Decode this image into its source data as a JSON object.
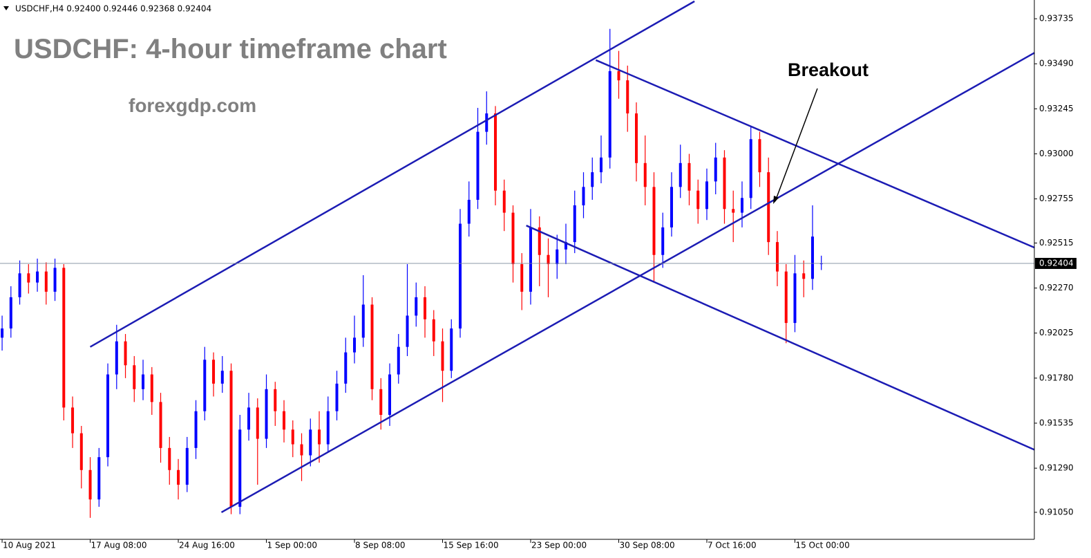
{
  "chart_data": {
    "type": "candlestick",
    "header": "USDCHF,H4  0.92400 0.92446 0.92368 0.92404",
    "title": "USDCHF: 4-hour timeframe chart",
    "subtitle": "forexgdp.com",
    "annotation": "Breakout",
    "up_color": "#0000ff",
    "down_color": "#ff0000",
    "line_color": "#1c1cb4",
    "xlim": [
      -0.24,
      117.18
    ],
    "ylim": [
      0.90903,
      0.93837
    ],
    "xticks": [
      {
        "value": 0,
        "label": "10 Aug 2021"
      },
      {
        "value": 10,
        "label": "17 Aug 08:00"
      },
      {
        "value": 20,
        "label": "24 Aug 16:00"
      },
      {
        "value": 30,
        "label": "1 Sep 00:00"
      },
      {
        "value": 40,
        "label": "8 Sep 08:00"
      },
      {
        "value": 50,
        "label": "15 Sep 16:00"
      },
      {
        "value": 60,
        "label": "23 Sep 00:00"
      },
      {
        "value": 70,
        "label": "30 Sep 08:00"
      },
      {
        "value": 80,
        "label": "7 Oct 16:00"
      },
      {
        "value": 90,
        "label": "15 Oct 00:00"
      }
    ],
    "yticks": [
      {
        "value": 0.93735,
        "label": "0.93735"
      },
      {
        "value": 0.9349,
        "label": "0.93490"
      },
      {
        "value": 0.93245,
        "label": "0.93245"
      },
      {
        "value": 0.93,
        "label": "0.93000"
      },
      {
        "value": 0.92755,
        "label": "0.92755"
      },
      {
        "value": 0.92515,
        "label": "0.92515"
      },
      {
        "value": 0.9227,
        "label": "0.92270"
      },
      {
        "value": 0.92025,
        "label": "0.92025"
      },
      {
        "value": 0.9178,
        "label": "0.91780"
      },
      {
        "value": 0.91535,
        "label": "0.91535"
      },
      {
        "value": 0.9129,
        "label": "0.91290"
      },
      {
        "value": 0.9105,
        "label": "0.91050"
      }
    ],
    "current_price": {
      "value": 0.92404,
      "label": "0.92404"
    },
    "open": [
      0.92,
      0.9205,
      0.9222,
      0.9235,
      0.923,
      0.9236,
      0.9225,
      0.9238,
      0.9162,
      0.9148,
      0.9128,
      0.9112,
      0.9135,
      0.918,
      0.9198,
      0.9185,
      0.9172,
      0.918,
      0.9165,
      0.914,
      0.9128,
      0.912,
      0.914,
      0.916,
      0.9188,
      0.9175,
      0.9182,
      0.9108,
      0.915,
      0.9162,
      0.9145,
      0.9172,
      0.916,
      0.915,
      0.9142,
      0.9136,
      0.915,
      0.9142,
      0.916,
      0.9175,
      0.9192,
      0.92,
      0.9218,
      0.9172,
      0.9158,
      0.918,
      0.9195,
      0.9212,
      0.9222,
      0.921,
      0.9198,
      0.9182,
      0.9205,
      0.9262,
      0.9275,
      0.9312,
      0.9322,
      0.928,
      0.9268,
      0.924,
      0.9225,
      0.926,
      0.9245,
      0.924,
      0.9248,
      0.9252,
      0.9272,
      0.9282,
      0.929,
      0.9298,
      0.9345,
      0.934,
      0.9322,
      0.9295,
      0.9282,
      0.9245,
      0.926,
      0.9282,
      0.9295,
      0.928,
      0.927,
      0.9285,
      0.9298,
      0.927,
      0.9268,
      0.9276,
      0.9308,
      0.929,
      0.9252,
      0.9236,
      0.9208,
      0.9235,
      0.9232,
      0.924
    ],
    "high": [
      0.9212,
      0.9228,
      0.9242,
      0.924,
      0.9243,
      0.9241,
      0.9243,
      0.924,
      0.9168,
      0.9152,
      0.9135,
      0.914,
      0.9186,
      0.9207,
      0.9202,
      0.919,
      0.9188,
      0.9184,
      0.917,
      0.9146,
      0.9134,
      0.9146,
      0.9166,
      0.9195,
      0.9192,
      0.919,
      0.9186,
      0.9158,
      0.917,
      0.9167,
      0.918,
      0.9176,
      0.9166,
      0.9155,
      0.9148,
      0.9156,
      0.916,
      0.9168,
      0.9182,
      0.92,
      0.9212,
      0.9234,
      0.9222,
      0.9178,
      0.9186,
      0.9202,
      0.924,
      0.923,
      0.9228,
      0.9215,
      0.9205,
      0.921,
      0.927,
      0.9285,
      0.9325,
      0.9334,
      0.9326,
      0.9286,
      0.9272,
      0.9246,
      0.927,
      0.9266,
      0.9254,
      0.9256,
      0.9262,
      0.928,
      0.929,
      0.9298,
      0.931,
      0.9368,
      0.9356,
      0.9348,
      0.9328,
      0.931,
      0.929,
      0.9268,
      0.929,
      0.9305,
      0.93,
      0.9286,
      0.9292,
      0.9306,
      0.9302,
      0.928,
      0.9285,
      0.9315,
      0.9312,
      0.9298,
      0.9258,
      0.924,
      0.9245,
      0.9242,
      0.9272,
      0.92446
    ],
    "low": [
      0.9193,
      0.92,
      0.9218,
      0.9224,
      0.9225,
      0.9218,
      0.922,
      0.9155,
      0.914,
      0.9118,
      0.9102,
      0.9108,
      0.913,
      0.9172,
      0.9178,
      0.9165,
      0.9166,
      0.9158,
      0.9132,
      0.912,
      0.9112,
      0.9116,
      0.9134,
      0.9155,
      0.9168,
      0.917,
      0.9104,
      0.9104,
      0.9144,
      0.912,
      0.914,
      0.9152,
      0.9143,
      0.9135,
      0.9122,
      0.913,
      0.9132,
      0.9138,
      0.9155,
      0.917,
      0.9186,
      0.9195,
      0.9166,
      0.915,
      0.9152,
      0.9175,
      0.919,
      0.9206,
      0.92,
      0.919,
      0.9165,
      0.9178,
      0.92,
      0.9255,
      0.927,
      0.9305,
      0.9272,
      0.9258,
      0.923,
      0.9215,
      0.9218,
      0.9228,
      0.9222,
      0.9232,
      0.924,
      0.9246,
      0.9265,
      0.9275,
      0.9284,
      0.9292,
      0.933,
      0.9312,
      0.9285,
      0.9272,
      0.923,
      0.9238,
      0.9255,
      0.9276,
      0.9272,
      0.9262,
      0.9264,
      0.9278,
      0.9262,
      0.9252,
      0.926,
      0.927,
      0.9282,
      0.9245,
      0.9228,
      0.9197,
      0.9203,
      0.9222,
      0.9226,
      0.92368
    ],
    "close": [
      0.9205,
      0.9222,
      0.9235,
      0.923,
      0.9236,
      0.9225,
      0.9238,
      0.9162,
      0.9148,
      0.9128,
      0.9112,
      0.9135,
      0.918,
      0.9198,
      0.9185,
      0.9172,
      0.918,
      0.9165,
      0.914,
      0.9128,
      0.912,
      0.914,
      0.916,
      0.9188,
      0.9175,
      0.9182,
      0.9108,
      0.915,
      0.9162,
      0.9145,
      0.9172,
      0.916,
      0.915,
      0.9142,
      0.9136,
      0.915,
      0.9142,
      0.916,
      0.9175,
      0.9192,
      0.92,
      0.9218,
      0.9172,
      0.9158,
      0.918,
      0.9195,
      0.9212,
      0.9222,
      0.921,
      0.9198,
      0.9182,
      0.9205,
      0.9262,
      0.9275,
      0.9312,
      0.9322,
      0.928,
      0.9268,
      0.924,
      0.9225,
      0.926,
      0.9245,
      0.924,
      0.9248,
      0.9252,
      0.9272,
      0.9282,
      0.929,
      0.9298,
      0.9345,
      0.934,
      0.9322,
      0.9295,
      0.9282,
      0.9245,
      0.926,
      0.9282,
      0.9295,
      0.928,
      0.927,
      0.9285,
      0.9298,
      0.927,
      0.9268,
      0.9276,
      0.9308,
      0.929,
      0.9252,
      0.9236,
      0.9208,
      0.9235,
      0.9232,
      0.9255,
      0.92404
    ],
    "trendlines": [
      {
        "x": [
          10,
          78.6
        ],
        "y": [
          0.9195,
          0.9383
        ]
      },
      {
        "x": [
          24.9,
          117.2
        ],
        "y": [
          0.9105,
          0.9355
        ]
      },
      {
        "x": [
          67.4,
          117.2
        ],
        "y": [
          0.9351,
          0.9249
        ]
      },
      {
        "x": [
          59.5,
          117.2
        ],
        "y": [
          0.9261,
          0.9139
        ]
      }
    ]
  }
}
